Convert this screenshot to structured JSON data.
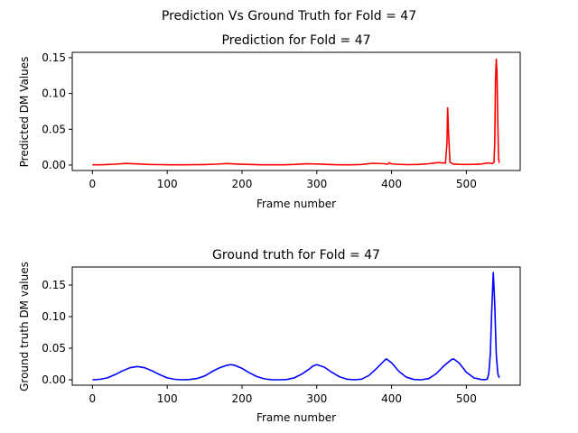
{
  "figure": {
    "suptitle": "Prediction Vs Ground Truth for Fold = 47"
  },
  "chart_data": [
    {
      "type": "line",
      "title": "Prediction for Fold = 47",
      "xlabel": "Frame number",
      "ylabel": "Predicted DM Values",
      "xlim": [
        -27,
        572
      ],
      "ylim": [
        -0.0076,
        0.1575
      ],
      "xticks": [
        0,
        100,
        200,
        300,
        400,
        500
      ],
      "yticks": [
        0.0,
        0.05,
        0.1,
        0.15
      ],
      "xtick_labels": [
        "0",
        "100",
        "200",
        "300",
        "400",
        "500"
      ],
      "ytick_labels": [
        "0.00",
        "0.05",
        "0.10",
        "0.15"
      ],
      "grid": false,
      "series": [
        {
          "color": "#ff0000",
          "x": [
            0,
            15,
            30,
            45,
            60,
            75,
            90,
            105,
            120,
            135,
            150,
            165,
            180,
            195,
            210,
            225,
            240,
            255,
            270,
            285,
            300,
            315,
            330,
            345,
            360,
            375,
            390,
            395,
            397,
            399,
            405,
            420,
            435,
            450,
            462,
            468,
            472,
            474,
            475,
            476,
            478,
            482,
            490,
            500,
            510,
            520,
            530,
            535,
            537,
            538,
            539,
            540,
            541,
            542,
            543,
            544
          ],
          "y": [
            0.0003,
            0.0005,
            0.0012,
            0.0022,
            0.0016,
            0.0009,
            0.0006,
            0.0004,
            0.0004,
            0.0005,
            0.0007,
            0.0012,
            0.0021,
            0.0014,
            0.0008,
            0.0004,
            0.0003,
            0.0004,
            0.0008,
            0.0017,
            0.0015,
            0.0008,
            0.0004,
            0.0004,
            0.0009,
            0.0025,
            0.0018,
            0.0012,
            0.0035,
            0.0018,
            0.0012,
            0.0006,
            0.0008,
            0.0018,
            0.0035,
            0.003,
            0.0025,
            0.03,
            0.08,
            0.05,
            0.004,
            0.0015,
            0.001,
            0.0008,
            0.001,
            0.0015,
            0.003,
            0.002,
            0.004,
            0.03,
            0.12,
            0.148,
            0.13,
            0.06,
            0.01,
            0.003
          ]
        }
      ]
    },
    {
      "type": "line",
      "title": "Ground truth for Fold = 47",
      "xlabel": "Frame number",
      "ylabel": "Ground truth DM values",
      "xlim": [
        -27,
        572
      ],
      "ylim": [
        -0.0085,
        0.1785
      ],
      "xticks": [
        0,
        100,
        200,
        300,
        400,
        500
      ],
      "yticks": [
        0.0,
        0.05,
        0.1,
        0.15
      ],
      "xtick_labels": [
        "0",
        "100",
        "200",
        "300",
        "400",
        "500"
      ],
      "ytick_labels": [
        "0.00",
        "0.05",
        "0.10",
        "0.15"
      ],
      "grid": false,
      "series": [
        {
          "color": "#0000ff",
          "x": [
            0,
            10,
            20,
            30,
            40,
            50,
            60,
            70,
            80,
            90,
            100,
            110,
            120,
            130,
            140,
            150,
            160,
            170,
            180,
            185,
            190,
            200,
            210,
            220,
            230,
            240,
            250,
            260,
            270,
            280,
            290,
            295,
            300,
            310,
            320,
            330,
            340,
            350,
            360,
            370,
            380,
            390,
            393,
            400,
            410,
            420,
            430,
            440,
            450,
            460,
            470,
            480,
            483,
            490,
            500,
            510,
            520,
            525,
            528,
            530,
            532,
            534,
            536,
            538,
            540,
            542,
            544
          ],
          "y": [
            0.0,
            0.0008,
            0.003,
            0.008,
            0.014,
            0.019,
            0.021,
            0.019,
            0.014,
            0.008,
            0.003,
            0.0008,
            0.0,
            0.0005,
            0.002,
            0.006,
            0.013,
            0.019,
            0.023,
            0.024,
            0.023,
            0.018,
            0.011,
            0.005,
            0.0015,
            0.0002,
            0.0,
            0.0005,
            0.003,
            0.009,
            0.017,
            0.022,
            0.024,
            0.02,
            0.012,
            0.005,
            0.001,
            0.0,
            0.001,
            0.007,
            0.018,
            0.03,
            0.033,
            0.027,
            0.013,
            0.004,
            0.0005,
            0.0,
            0.002,
            0.01,
            0.022,
            0.032,
            0.033,
            0.027,
            0.012,
            0.003,
            0.0005,
            0.0003,
            0.001,
            0.01,
            0.04,
            0.11,
            0.17,
            0.12,
            0.04,
            0.01,
            0.003
          ]
        }
      ]
    }
  ]
}
